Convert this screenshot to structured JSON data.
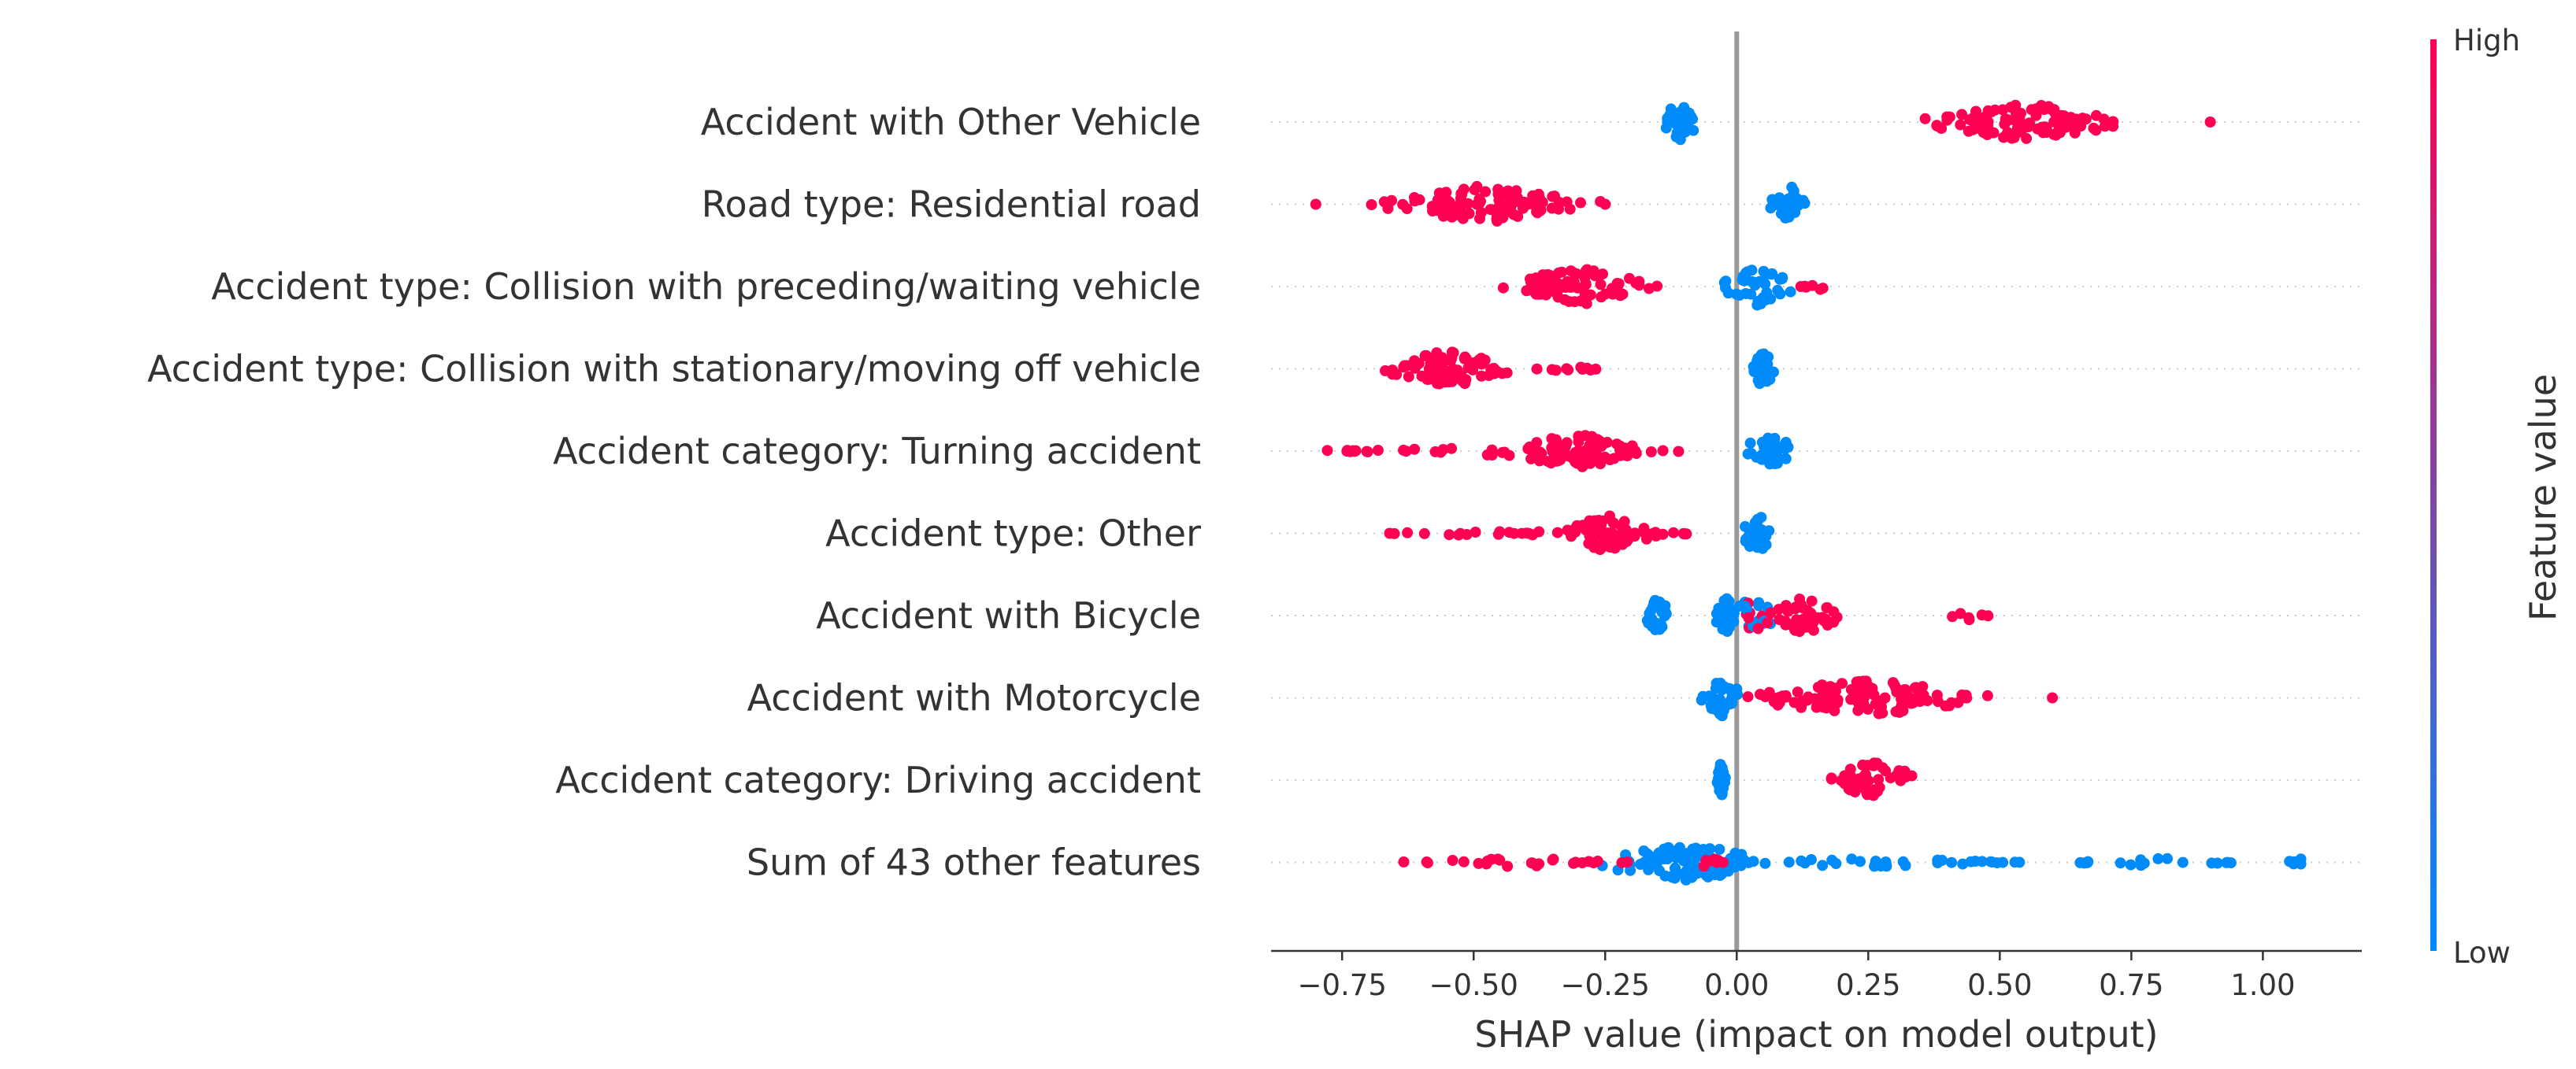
{
  "chart_data": {
    "type": "scatter",
    "subtype": "shap-beeswarm",
    "xlabel": "SHAP value (impact on model output)",
    "xlim": [
      -0.885,
      1.188
    ],
    "xticks": [
      -0.75,
      -0.5,
      -0.25,
      0.0,
      0.25,
      0.5,
      0.75,
      1.0
    ],
    "xtick_labels": [
      "−0.75",
      "−0.50",
      "−0.25",
      "0.00",
      "0.25",
      "0.50",
      "0.75",
      "1.00"
    ],
    "colorbar": {
      "label": "Feature value",
      "high_label": "High",
      "low_label": "Low",
      "high_color": "#ff0052",
      "low_color": "#008bfb"
    },
    "features": [
      {
        "name": "Accident with Other Vehicle",
        "groups": [
          {
            "color": "low",
            "center": -0.11,
            "spread": 0.05,
            "density": "dense"
          },
          {
            "color": "high",
            "center": 0.55,
            "spread": 0.25,
            "density": "dense"
          },
          {
            "color": "high",
            "center": 0.9,
            "spread": 0.0,
            "density": "single"
          }
        ]
      },
      {
        "name": "Road type: Residential road",
        "groups": [
          {
            "color": "high",
            "center": -0.8,
            "spread": 0.0,
            "density": "single"
          },
          {
            "color": "high",
            "center": -0.48,
            "spread": 0.24,
            "density": "dense"
          },
          {
            "color": "high",
            "center": -0.25,
            "spread": 0.0,
            "density": "single"
          },
          {
            "color": "low",
            "center": 0.1,
            "spread": 0.05,
            "density": "dense"
          }
        ]
      },
      {
        "name": "Accident type: Collision with preceding/waiting vehicle",
        "groups": [
          {
            "color": "high",
            "center": -0.3,
            "spread": 0.17,
            "density": "dense"
          },
          {
            "color": "high",
            "center": -0.37,
            "spread": 0.04,
            "density": "cluster"
          },
          {
            "color": "low",
            "center": 0.04,
            "spread": 0.09,
            "density": "dense"
          },
          {
            "color": "high",
            "center": 0.15,
            "spread": 0.03,
            "density": "sparse"
          }
        ]
      },
      {
        "name": "Accident type: Collision with stationary/moving off vehicle",
        "groups": [
          {
            "color": "high",
            "center": -0.55,
            "spread": 0.17,
            "density": "dense"
          },
          {
            "color": "high",
            "center": -0.33,
            "spread": 0.08,
            "density": "sparse"
          },
          {
            "color": "low",
            "center": 0.05,
            "spread": 0.03,
            "density": "dense"
          }
        ]
      },
      {
        "name": "Accident category: Turning accident",
        "groups": [
          {
            "color": "high",
            "center": -0.44,
            "spread": 0.34,
            "density": "sparse"
          },
          {
            "color": "high",
            "center": -0.3,
            "spread": 0.16,
            "density": "dense"
          },
          {
            "color": "low",
            "center": 0.06,
            "spread": 0.07,
            "density": "dense"
          }
        ]
      },
      {
        "name": "Accident type: Other",
        "groups": [
          {
            "color": "high",
            "center": -0.37,
            "spread": 0.3,
            "density": "sparse"
          },
          {
            "color": "high",
            "center": -0.25,
            "spread": 0.12,
            "density": "dense"
          },
          {
            "color": "low",
            "center": 0.04,
            "spread": 0.05,
            "density": "dense"
          }
        ]
      },
      {
        "name": "Accident with Bicycle",
        "groups": [
          {
            "color": "low",
            "center": -0.15,
            "spread": 0.03,
            "density": "dense"
          },
          {
            "color": "low",
            "center": -0.02,
            "spread": 0.03,
            "density": "dense"
          },
          {
            "color": "mixed",
            "center": 0.03,
            "spread": 0.06,
            "density": "dense"
          },
          {
            "color": "high",
            "center": 0.13,
            "spread": 0.09,
            "density": "dense"
          },
          {
            "color": "high",
            "center": 0.44,
            "spread": 0.04,
            "density": "sparse"
          }
        ]
      },
      {
        "name": "Accident with Motorcycle",
        "groups": [
          {
            "color": "low",
            "center": -0.03,
            "spread": 0.06,
            "density": "dense"
          },
          {
            "color": "high",
            "center": 0.25,
            "spread": 0.28,
            "density": "dense"
          },
          {
            "color": "high",
            "center": 0.6,
            "spread": 0.0,
            "density": "single"
          }
        ]
      },
      {
        "name": "Accident category: Driving accident",
        "groups": [
          {
            "color": "low",
            "center": -0.03,
            "spread": 0.01,
            "density": "dense"
          },
          {
            "color": "high",
            "center": 0.26,
            "spread": 0.12,
            "density": "dense"
          }
        ]
      },
      {
        "name": "Sum of 43 other features",
        "groups": [
          {
            "color": "low",
            "center": -0.1,
            "spread": 0.22,
            "density": "dense"
          },
          {
            "color": "low",
            "center": 0.25,
            "spread": 0.3,
            "density": "sparse"
          },
          {
            "color": "low",
            "center": 0.8,
            "spread": 0.15,
            "density": "sparse"
          },
          {
            "color": "low",
            "center": 1.07,
            "spread": 0.03,
            "density": "sparse"
          },
          {
            "color": "high",
            "center": -0.42,
            "spread": 0.22,
            "density": "sparse"
          },
          {
            "color": "high",
            "center": -0.05,
            "spread": 0.06,
            "density": "sparse"
          }
        ]
      }
    ]
  }
}
